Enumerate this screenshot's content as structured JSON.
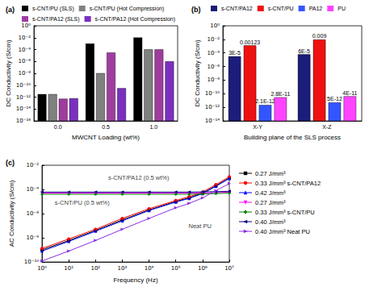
{
  "chart_data": [
    {
      "type": "bar",
      "title": "(a)",
      "x_label": "MWCNT Loading (wt%)",
      "y_label": "DC Conductivity (S/cm)",
      "categories": [
        "0.0",
        "0.5",
        "1.0"
      ],
      "series": [
        {
          "name": "s-CNT/PU (SLS)",
          "color": "#000000",
          "values": [
            3e-12,
            0.001,
            0.01
          ]
        },
        {
          "name": "s-CNT/PU (Hot Compression)",
          "color": "#808080",
          "values": [
            3e-12,
            1e-08,
            0.0001
          ]
        },
        {
          "name": "s-CNT/PA12 (SLS)",
          "color": "#a03ca0",
          "values": [
            5e-13,
            3e-05,
            0.0001
          ]
        },
        {
          "name": "s-CNT/PA12 (Hot Compression)",
          "color": "#7b2fbf",
          "values": [
            6e-13,
            3e-11,
            1e-06
          ]
        }
      ],
      "ylim": [
        1e-16,
        1
      ],
      "yticks": [
        {
          "value": 1e-16,
          "label": "10⁻¹⁶"
        },
        {
          "value": 1e-14,
          "label": "10⁻¹⁴"
        },
        {
          "value": 1e-12,
          "label": "10⁻¹²"
        },
        {
          "value": 1e-10,
          "label": "10⁻¹⁰"
        },
        {
          "value": 1e-08,
          "label": "10⁻⁸"
        },
        {
          "value": 1e-06,
          "label": "10⁻⁶"
        },
        {
          "value": 0.0001,
          "label": "10⁻⁴"
        },
        {
          "value": 0.01,
          "label": "10⁻²"
        },
        {
          "value": 1,
          "label": "10⁰"
        }
      ],
      "log": "y",
      "grid": false,
      "legend": "top"
    },
    {
      "type": "bar",
      "title": "(b)",
      "x_label": "Building plane of the SLS process",
      "y_label": "DC Conductivity (S/cm)",
      "categories": [
        "X-Y",
        "X-Z"
      ],
      "series": [
        {
          "name": "s-CNT/PA12",
          "color": "#1c1c7a",
          "values": [
            3e-05,
            6e-05
          ],
          "value_labels": [
            "3E-5",
            "6E-5"
          ]
        },
        {
          "name": "s-CNT/PU",
          "color": "#ee1111",
          "values": [
            0.00123,
            0.009
          ],
          "value_labels": [
            "0.00123",
            "0.009"
          ]
        },
        {
          "name": "PA12",
          "color": "#3355ff",
          "values": [
            2.1e-12,
            5e-12
          ],
          "value_labels": [
            "2.1E-12",
            "5E-12"
          ]
        },
        {
          "name": "PU",
          "color": "#ff44ff",
          "values": [
            2.8e-11,
            4e-11
          ],
          "value_labels": [
            "2.8E-11",
            "4E-11"
          ]
        }
      ],
      "ylim": [
        1e-14,
        1
      ],
      "yticks": [
        {
          "value": 1e-14,
          "label": "10⁻¹⁴"
        },
        {
          "value": 1e-12,
          "label": "10⁻¹²"
        },
        {
          "value": 1e-10,
          "label": "10⁻¹⁰"
        },
        {
          "value": 1e-08,
          "label": "10⁻⁸"
        },
        {
          "value": 1e-06,
          "label": "10⁻⁶"
        },
        {
          "value": 0.0001,
          "label": "10⁻⁴"
        },
        {
          "value": 0.01,
          "label": "10⁻²"
        },
        {
          "value": 1,
          "label": "10⁰"
        }
      ],
      "log": "y",
      "grid": false,
      "legend": "top",
      "data_labels": true
    },
    {
      "type": "line",
      "title": "(c)",
      "x_label": "Frequency (Hz)",
      "y_label": "AC Conductivity (S/cm)",
      "x": [
        1,
        10,
        100,
        1000,
        10000,
        100000,
        316228,
        1000000,
        3162278,
        10000000
      ],
      "series": [
        {
          "name": "0.27 J/mm³",
          "color": "#000000",
          "marker": "square",
          "values": [
            1e-09,
            6e-09,
            4e-08,
            3e-07,
            2e-06,
            1e-05,
            2e-05,
            5e-05,
            0.0002,
            0.0009
          ]
        },
        {
          "name": "0.33 J/mm³ s-CNT/PA12",
          "color": "#ff0000",
          "marker": "circle",
          "values": [
            1.3e-09,
            8e-09,
            5e-08,
            4e-07,
            2.5e-06,
            1.2e-05,
            2.5e-05,
            6e-05,
            0.00025,
            0.0011
          ]
        },
        {
          "name": "0.42 J/mm³",
          "color": "#0000ff",
          "marker": "triangle",
          "values": [
            8e-10,
            5e-09,
            3.5e-08,
            2.5e-07,
            1.8e-06,
            9e-06,
            1.8e-05,
            4.5e-05,
            0.00018,
            0.0008
          ]
        },
        {
          "name": "0.27 J/mm³",
          "color": "#ff00ff",
          "marker": "triangle-down",
          "values": [
            5e-05,
            5e-05,
            5e-05,
            5e-05,
            5e-05,
            5e-05,
            5e-05,
            5.2e-05,
            5.5e-05,
            6e-05
          ]
        },
        {
          "name": "0.33 J/mm³ s-CNT/PU",
          "color": "#008000",
          "marker": "diamond",
          "values": [
            4e-05,
            4e-05,
            4e-05,
            4e-05,
            4e-05,
            4e-05,
            4e-05,
            4.2e-05,
            4.5e-05,
            5e-05
          ]
        },
        {
          "name": "0.40 J/mm³",
          "color": "#000080",
          "marker": "triangle-left",
          "values": [
            6e-05,
            6e-05,
            6e-05,
            6e-05,
            6e-05,
            6e-05,
            6e-05,
            6.2e-05,
            6.5e-05,
            7e-05
          ]
        },
        {
          "name": "0.40 J/mm³ Neat PU",
          "color": "#8a2be2",
          "marker": "triangle-right",
          "values": [
            1.2e-10,
            8e-10,
            6e-09,
            5e-08,
            4e-07,
            3e-06,
            7e-06,
            2e-05,
            8e-05,
            0.0003
          ]
        }
      ],
      "annotations": [
        {
          "text": "s-CNT/PA12 (0.5 wt%)",
          "x": 300,
          "y": 0.001
        },
        {
          "text": "s-CNT/PU (0.5 wt%)",
          "x": 3,
          "y": 8e-06
        },
        {
          "text": "Neat PU",
          "x": 300000,
          "y": 1e-07
        }
      ],
      "xlim": [
        1,
        10000000
      ],
      "xticks": [
        {
          "value": 1,
          "label": "10⁰"
        },
        {
          "value": 10,
          "label": "10¹"
        },
        {
          "value": 100,
          "label": "10²"
        },
        {
          "value": 1000,
          "label": "10³"
        },
        {
          "value": 10000,
          "label": "10⁴"
        },
        {
          "value": 100000,
          "label": "10⁵"
        },
        {
          "value": 1000000,
          "label": "10⁶"
        },
        {
          "value": 10000000,
          "label": "10⁷"
        }
      ],
      "ylim": [
        1e-10,
        0.01
      ],
      "yticks": [
        {
          "value": 1e-10,
          "label": "10⁻¹⁰"
        },
        {
          "value": 1e-08,
          "label": "10⁻⁸"
        },
        {
          "value": 1e-06,
          "label": "10⁻⁶"
        },
        {
          "value": 0.0001,
          "label": "10⁻⁴"
        },
        {
          "value": 0.01,
          "label": "10⁻²"
        }
      ],
      "log": true,
      "grid": false,
      "legend": "right"
    }
  ]
}
